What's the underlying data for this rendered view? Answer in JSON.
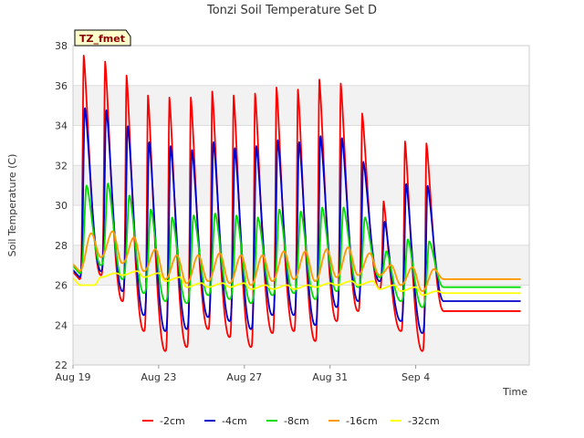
{
  "chart_data": {
    "type": "line",
    "title": "Tonzi Soil Temperature Set D",
    "xlabel": "Time",
    "ylabel": "Soil Temperature (C)",
    "site_label": "TZ_fmet",
    "xlim": [
      0,
      21.3
    ],
    "ylim": [
      22,
      38
    ],
    "y_ticks": [
      22,
      24,
      26,
      28,
      30,
      32,
      34,
      36,
      38
    ],
    "x_ticks": [
      {
        "day": 0,
        "label": "Aug 19"
      },
      {
        "day": 4,
        "label": "Aug 23"
      },
      {
        "day": 8,
        "label": "Aug 27"
      },
      {
        "day": 12,
        "label": "Aug 31"
      },
      {
        "day": 16,
        "label": "Sep 4"
      }
    ],
    "grid": "horizontal bands",
    "legend_position": "bottom",
    "x_unit": "days since Aug 19",
    "series": [
      {
        "name": "-2cm",
        "color": "#ff0000",
        "peak_day_offset": 0.5,
        "peak_width": 0.09,
        "skew": 0.5,
        "peaks": [
          37.5,
          37.2,
          36.5,
          35.5,
          35.4,
          35.4,
          35.7,
          35.5,
          35.6,
          35.9,
          35.8,
          36.3,
          36.1,
          34.6,
          30.2,
          33.2,
          33.1
        ],
        "mins": [
          26.3,
          26.5,
          25.2,
          23.7,
          22.7,
          22.9,
          23.8,
          23.4,
          22.9,
          23.6,
          23.7,
          23.2,
          24.2,
          24.7,
          25.8,
          23.7,
          22.7,
          24.7
        ]
      },
      {
        "name": "-4cm",
        "color": "#0000cc",
        "peak_day_offset": 0.55,
        "peak_width": 0.11,
        "skew": 0.6,
        "peaks": [
          34.9,
          34.8,
          34.0,
          33.2,
          33.0,
          32.8,
          33.2,
          32.9,
          33.0,
          33.3,
          33.2,
          33.5,
          33.4,
          32.2,
          29.2,
          31.1,
          31.0
        ],
        "mins": [
          26.4,
          26.7,
          25.7,
          24.5,
          23.7,
          23.8,
          24.4,
          24.2,
          23.8,
          24.5,
          24.5,
          24.0,
          24.9,
          25.2,
          26.2,
          24.2,
          23.6,
          25.2
        ]
      },
      {
        "name": "-8cm",
        "color": "#00dd00",
        "peak_day_offset": 0.63,
        "peak_width": 0.15,
        "skew": 0.7,
        "peaks": [
          31.0,
          31.1,
          30.5,
          29.8,
          29.4,
          29.5,
          29.6,
          29.5,
          29.4,
          29.8,
          29.7,
          29.9,
          29.9,
          29.4,
          27.7,
          28.3,
          28.2
        ],
        "mins": [
          26.6,
          27.0,
          26.3,
          25.6,
          25.2,
          25.1,
          25.5,
          25.3,
          25.1,
          25.5,
          25.6,
          25.3,
          25.7,
          25.9,
          26.4,
          25.2,
          24.9,
          25.9
        ]
      },
      {
        "name": "-16cm",
        "color": "#ff9900",
        "peak_day_offset": 0.85,
        "peak_width": 0.25,
        "skew": 0.95,
        "peaks": [
          28.6,
          28.7,
          28.4,
          27.8,
          27.5,
          27.5,
          27.6,
          27.5,
          27.5,
          27.7,
          27.7,
          27.8,
          27.9,
          27.6,
          27.0,
          26.9,
          26.8
        ],
        "mins": [
          26.7,
          27.4,
          27.1,
          26.7,
          26.3,
          26.1,
          26.2,
          26.1,
          26.0,
          26.2,
          26.3,
          26.2,
          26.4,
          26.5,
          26.5,
          26.0,
          25.7,
          26.3
        ]
      },
      {
        "name": "-32cm",
        "color": "#ffff00",
        "peak_day_offset": 1.0,
        "peak_width": 0.4,
        "skew": 1.0,
        "peaks": [
          26.0,
          26.6,
          26.7,
          26.6,
          26.4,
          26.1,
          26.1,
          26.1,
          26.0,
          26.0,
          26.0,
          26.1,
          26.2,
          26.2,
          26.0,
          25.9,
          25.7
        ],
        "mins": [
          26.0,
          26.4,
          26.5,
          26.4,
          26.2,
          25.9,
          25.9,
          25.9,
          25.8,
          25.8,
          25.8,
          25.9,
          26.0,
          26.0,
          25.8,
          25.7,
          25.5,
          25.6
        ]
      }
    ]
  }
}
